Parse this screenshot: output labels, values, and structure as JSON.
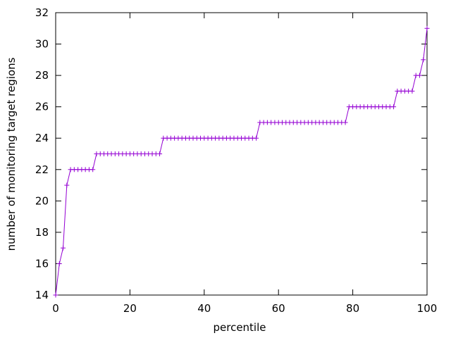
{
  "chart_data": {
    "type": "line",
    "title": "",
    "xlabel": "percentile",
    "ylabel": "number of monitoring target regions",
    "xlim": [
      0,
      100
    ],
    "ylim": [
      14,
      32
    ],
    "grid": false,
    "legend": "none",
    "xticks": [
      0,
      20,
      40,
      60,
      80,
      100
    ],
    "yticks": [
      14,
      16,
      18,
      20,
      22,
      24,
      26,
      28,
      30,
      32
    ],
    "series": [
      {
        "color": "#9400d3",
        "marker": "plus",
        "x": [
          0,
          1,
          2,
          3,
          4,
          5,
          6,
          7,
          8,
          9,
          10,
          11,
          12,
          13,
          14,
          15,
          16,
          17,
          18,
          19,
          20,
          21,
          22,
          23,
          24,
          25,
          26,
          27,
          28,
          29,
          30,
          31,
          32,
          33,
          34,
          35,
          36,
          37,
          38,
          39,
          40,
          41,
          42,
          43,
          44,
          45,
          46,
          47,
          48,
          49,
          50,
          51,
          52,
          53,
          54,
          55,
          56,
          57,
          58,
          59,
          60,
          61,
          62,
          63,
          64,
          65,
          66,
          67,
          68,
          69,
          70,
          71,
          72,
          73,
          74,
          75,
          76,
          77,
          78,
          79,
          80,
          81,
          82,
          83,
          84,
          85,
          86,
          87,
          88,
          89,
          90,
          91,
          92,
          93,
          94,
          95,
          96,
          97,
          98,
          99,
          100
        ],
        "y": [
          14,
          16,
          17,
          21,
          22,
          22,
          22,
          22,
          22,
          22,
          22,
          23,
          23,
          23,
          23,
          23,
          23,
          23,
          23,
          23,
          23,
          23,
          23,
          23,
          23,
          23,
          23,
          23,
          23,
          24,
          24,
          24,
          24,
          24,
          24,
          24,
          24,
          24,
          24,
          24,
          24,
          24,
          24,
          24,
          24,
          24,
          24,
          24,
          24,
          24,
          24,
          24,
          24,
          24,
          24,
          25,
          25,
          25,
          25,
          25,
          25,
          25,
          25,
          25,
          25,
          25,
          25,
          25,
          25,
          25,
          25,
          25,
          25,
          25,
          25,
          25,
          25,
          25,
          25,
          26,
          26,
          26,
          26,
          26,
          26,
          26,
          26,
          26,
          26,
          26,
          26,
          26,
          27,
          27,
          27,
          27,
          27,
          28,
          28,
          29,
          31
        ]
      }
    ]
  }
}
